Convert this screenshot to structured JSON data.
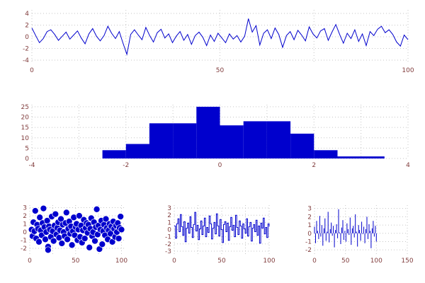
{
  "style": {
    "accent": "#0000cd",
    "grid_color": "#c6c6c6",
    "tick_label_color": "#803c3c",
    "background": "#ffffff"
  },
  "chart_data": [
    {
      "id": "noise-line",
      "type": "line",
      "x_span": 100,
      "xlim": [
        0,
        100
      ],
      "ylim": [
        -4.6,
        4.6
      ],
      "x_ticks": [
        0,
        50,
        100
      ],
      "y_ticks": [
        4,
        2,
        0,
        -2,
        -4
      ],
      "x_grid": [
        0,
        25,
        50,
        75,
        100
      ],
      "y_grid": [
        -4,
        -2,
        0,
        2,
        4
      ],
      "values": [
        1.5,
        0.2,
        -1.0,
        -0.3,
        0.9,
        1.2,
        0.4,
        -0.6,
        0.1,
        0.8,
        -0.4,
        0.3,
        1.0,
        -0.2,
        -1.2,
        0.5,
        1.4,
        0.1,
        -0.7,
        0.2,
        1.8,
        0.6,
        -0.3,
        0.9,
        -1.1,
        -3.0,
        0.4,
        1.2,
        0.3,
        -0.5,
        1.6,
        0.2,
        -0.9,
        0.7,
        1.3,
        -0.2,
        0.5,
        -1.0,
        0.1,
        0.9,
        -0.6,
        0.4,
        -1.3,
        0.2,
        0.8,
        -0.1,
        -1.5,
        0.3,
        -0.8,
        0.6,
        -0.2,
        -1.0,
        0.5,
        -0.4,
        0.2,
        -0.9,
        0.1,
        3.1,
        0.8,
        1.9,
        -1.4,
        0.6,
        1.2,
        -0.3,
        1.5,
        0.4,
        -1.8,
        0.2,
        0.9,
        -0.5,
        1.1,
        0.3,
        -0.7,
        1.7,
        0.5,
        -0.2,
        1.0,
        1.4,
        -0.6,
        0.8,
        2.1,
        0.4,
        -1.1,
        0.6,
        -0.3,
        1.2,
        -0.8,
        0.5,
        -1.5,
        0.9,
        0.2,
        1.3,
        1.8,
        0.7,
        1.2,
        0.4,
        -0.9,
        -1.6,
        0.3,
        -0.5
      ]
    },
    {
      "id": "histogram",
      "type": "bar",
      "variant": "histogram",
      "xlim": [
        -4,
        4
      ],
      "ylim": [
        0,
        26
      ],
      "x_ticks": [
        -4,
        -2,
        0,
        2,
        4
      ],
      "y_ticks": [
        0,
        5,
        10,
        15,
        20,
        25
      ],
      "x_grid": [
        -4,
        -3,
        -2,
        -1,
        0,
        1,
        2,
        3,
        4
      ],
      "y_grid": [
        0,
        5,
        10,
        15,
        20,
        25
      ],
      "bin_edges": [
        -2.5,
        -2,
        -1.5,
        -1,
        -0.5,
        0,
        0.5,
        1,
        1.5,
        2,
        2.5,
        3,
        3.5
      ],
      "counts": [
        4,
        7,
        17,
        17,
        25,
        16,
        18,
        18,
        12,
        4,
        1,
        1
      ]
    },
    {
      "id": "scatter",
      "type": "scatter",
      "xlim": [
        0,
        105
      ],
      "ylim": [
        -2.7,
        3.3
      ],
      "x_ticks": [
        0,
        50,
        100
      ],
      "y_ticks": [
        3,
        2,
        1,
        0,
        -1,
        -2
      ],
      "x_grid": [
        0,
        25,
        50,
        75,
        100
      ],
      "y_grid": [
        3,
        2,
        1,
        0,
        -1,
        -2
      ],
      "points": [
        [
          2,
          0.3
        ],
        [
          3,
          -0.5
        ],
        [
          4,
          1.2
        ],
        [
          5,
          0.1
        ],
        [
          6,
          2.6
        ],
        [
          7,
          -0.8
        ],
        [
          8,
          0.9
        ],
        [
          9,
          0.4
        ],
        [
          10,
          -1.2
        ],
        [
          11,
          1.8
        ],
        [
          12,
          0.2
        ],
        [
          13,
          -0.4
        ],
        [
          14,
          1.1
        ],
        [
          15,
          2.9
        ],
        [
          16,
          0.6
        ],
        [
          17,
          -0.9
        ],
        [
          18,
          0.0
        ],
        [
          19,
          1.4
        ],
        [
          20,
          -1.8
        ],
        [
          21,
          0.7
        ],
        [
          22,
          0.3
        ],
        [
          23,
          -0.6
        ],
        [
          24,
          1.9
        ],
        [
          25,
          0.1
        ],
        [
          26,
          -1.1
        ],
        [
          27,
          0.8
        ],
        [
          28,
          2.2
        ],
        [
          29,
          -0.3
        ],
        [
          30,
          0.5
        ],
        [
          31,
          1.2
        ],
        [
          32,
          -0.7
        ],
        [
          33,
          0.2
        ],
        [
          34,
          1.6
        ],
        [
          35,
          -1.4
        ],
        [
          36,
          0.9
        ],
        [
          37,
          0.0
        ],
        [
          38,
          -0.5
        ],
        [
          39,
          1.1
        ],
        [
          40,
          2.4
        ],
        [
          41,
          -0.9
        ],
        [
          42,
          0.4
        ],
        [
          43,
          1.3
        ],
        [
          44,
          -0.2
        ],
        [
          45,
          0.7
        ],
        [
          46,
          -1.6
        ],
        [
          47,
          0.1
        ],
        [
          48,
          1.8
        ],
        [
          49,
          -0.4
        ],
        [
          50,
          0.6
        ],
        [
          51,
          1.0
        ],
        [
          52,
          -1.0
        ],
        [
          53,
          0.3
        ],
        [
          54,
          2.0
        ],
        [
          55,
          -0.6
        ],
        [
          56,
          0.8
        ],
        [
          57,
          -1.3
        ],
        [
          58,
          0.2
        ],
        [
          59,
          1.5
        ],
        [
          60,
          -0.8
        ],
        [
          61,
          0.5
        ],
        [
          62,
          1.1
        ],
        [
          63,
          -0.1
        ],
        [
          64,
          0.9
        ],
        [
          65,
          -1.9
        ],
        [
          66,
          0.4
        ],
        [
          67,
          1.7
        ],
        [
          68,
          -0.5
        ],
        [
          69,
          0.0
        ],
        [
          70,
          1.2
        ],
        [
          71,
          -1.1
        ],
        [
          72,
          0.6
        ],
        [
          73,
          2.8
        ],
        [
          74,
          -0.3
        ],
        [
          75,
          0.8
        ],
        [
          76,
          -2.1
        ],
        [
          77,
          0.3
        ],
        [
          78,
          1.4
        ],
        [
          79,
          -1.5
        ],
        [
          80,
          0.1
        ],
        [
          81,
          0.9
        ],
        [
          82,
          -0.4
        ],
        [
          83,
          1.6
        ],
        [
          84,
          0.5
        ],
        [
          85,
          -0.9
        ],
        [
          86,
          0.2
        ],
        [
          87,
          1.0
        ],
        [
          88,
          -0.2
        ],
        [
          89,
          0.7
        ],
        [
          90,
          -1.2
        ],
        [
          91,
          1.3
        ],
        [
          92,
          0.4
        ],
        [
          93,
          -0.6
        ],
        [
          94,
          0.8
        ],
        [
          95,
          0.0
        ],
        [
          96,
          1.1
        ],
        [
          97,
          -0.8
        ],
        [
          98,
          0.5
        ],
        [
          99,
          1.9
        ],
        [
          100,
          0.3
        ],
        [
          20,
          -2.2
        ]
      ]
    },
    {
      "id": "step",
      "type": "line",
      "variant": "step",
      "x_span": 100,
      "xlim": [
        0,
        100
      ],
      "ylim": [
        -3.4,
        3.4
      ],
      "x_ticks": [
        0,
        50,
        100
      ],
      "y_ticks": [
        3,
        2,
        1,
        0,
        -1,
        -2,
        -3
      ],
      "x_grid": [
        0,
        25,
        50,
        75,
        100
      ],
      "y_grid": [
        3,
        2,
        1,
        0,
        -1,
        -2,
        -3
      ],
      "values": [
        0.5,
        -1.2,
        0.8,
        1.5,
        -0.3,
        2.1,
        0.4,
        -0.8,
        1.1,
        -1.7,
        0.2,
        0.9,
        -0.5,
        1.8,
        0.3,
        -1.1,
        0.7,
        2.4,
        -0.2,
        0.6,
        -1.4,
        0.1,
        1.2,
        -0.7,
        0.5,
        1.6,
        -1.0,
        0.3,
        -0.4,
        1.9,
        0.8,
        -1.3,
        0.2,
        1.0,
        -0.6,
        2.2,
        0.5,
        -0.9,
        1.4,
        0.0,
        -1.8,
        0.7,
        1.1,
        -0.3,
        0.9,
        -1.5,
        0.4,
        1.7,
        -0.1,
        0.6,
        -1.0,
        2.0,
        0.3,
        -0.7,
        1.2,
        0.5,
        -1.2,
        0.8,
        0.1,
        -0.5,
        1.5,
        -0.9,
        0.4,
        1.0,
        -1.6,
        0.2,
        0.7,
        -0.3,
        1.3,
        -0.8,
        0.5,
        -1.9,
        0.9,
        0.2,
        1.6,
        -0.6,
        0.3,
        -1.1,
        0.8,
        0.4
      ]
    },
    {
      "id": "stem",
      "type": "bar",
      "variant": "stem",
      "x_span": 100,
      "xlim": [
        0,
        150
      ],
      "ylim": [
        -2.5,
        3.4
      ],
      "x_ticks": [
        0,
        50,
        100,
        150
      ],
      "y_ticks": [
        3,
        2,
        1,
        0,
        -1,
        -2
      ],
      "x_grid": [
        0,
        50,
        100,
        150
      ],
      "y_grid": [
        3,
        2,
        1,
        0,
        -1,
        -2
      ],
      "values": [
        0.8,
        -1.2,
        1.5,
        0.3,
        -0.7,
        2.1,
        -0.4,
        1.0,
        -1.5,
        0.6,
        1.8,
        -0.9,
        0.2,
        2.6,
        -1.1,
        0.5,
        1.3,
        -0.3,
        0.9,
        -1.7,
        0.4,
        1.1,
        -0.6,
        2.9,
        0.1,
        -1.3,
        0.7,
        1.6,
        -0.8,
        0.3,
        -1.0,
        1.2,
        0.5,
        -0.2,
        1.9,
        -1.4,
        0.6,
        0.9,
        -0.5,
        2.3,
        0.2,
        -1.6,
        1.0,
        0.4,
        -0.9,
        1.4,
        -0.1,
        0.8,
        -1.2,
        0.5,
        2.0,
        -0.7,
        1.1,
        0.3,
        -1.8,
        0.6,
        1.5,
        -0.4,
        0.9,
        -1.0
      ]
    }
  ]
}
